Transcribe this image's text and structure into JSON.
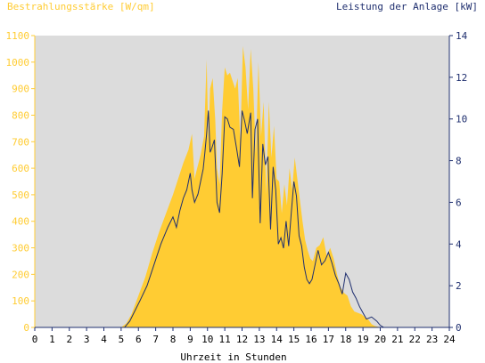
{
  "chart_data": {
    "type": "area",
    "left_axis_title": "Bestrahlungsstärke [W/qm]",
    "right_axis_title": "Leistung der Anlage [kW]",
    "xlabel": "Uhrzeit in Stunden",
    "x_ticks": [
      "0",
      "1",
      "2",
      "3",
      "4",
      "5",
      "6",
      "7",
      "8",
      "9",
      "10",
      "11",
      "12",
      "13",
      "14",
      "15",
      "16",
      "17",
      "18",
      "19",
      "20",
      "21",
      "22",
      "23",
      "24"
    ],
    "y_left_ticks": [
      "0",
      "100",
      "200",
      "300",
      "400",
      "500",
      "600",
      "700",
      "800",
      "900",
      "1000",
      "1100"
    ],
    "y_right_ticks": [
      "0",
      "2",
      "4",
      "6",
      "8",
      "10",
      "12",
      "14"
    ],
    "xlim": [
      0,
      24
    ],
    "ylim_left": [
      0,
      1100
    ],
    "ylim_right": [
      0,
      14
    ],
    "colors": {
      "irradiance": "#ffcc33",
      "power": "#1f2f6f",
      "plot_bg": "#dcdcdc",
      "left_axis": "#ffcc33",
      "right_axis": "#1f2f6f"
    },
    "series": [
      {
        "axis": "left",
        "x": [
          0,
          5.0,
          5.3,
          5.6,
          6.0,
          6.4,
          6.8,
          7.2,
          7.6,
          8.0,
          8.3,
          8.6,
          8.9,
          9.1,
          9.25,
          9.4,
          9.6,
          9.8,
          9.95,
          10.05,
          10.15,
          10.3,
          10.45,
          10.55,
          10.7,
          10.85,
          11.0,
          11.15,
          11.3,
          11.45,
          11.6,
          11.75,
          11.9,
          12.05,
          12.2,
          12.35,
          12.5,
          12.65,
          12.8,
          12.95,
          13.1,
          13.25,
          13.4,
          13.55,
          13.7,
          13.85,
          14.0,
          14.15,
          14.3,
          14.45,
          14.6,
          14.75,
          14.9,
          15.05,
          15.2,
          15.35,
          15.5,
          15.65,
          15.8,
          15.95,
          16.1,
          16.3,
          16.5,
          16.7,
          16.9,
          17.1,
          17.3,
          17.5,
          17.7,
          17.9,
          18.1,
          18.3,
          18.5,
          18.7,
          18.9,
          19.1,
          19.3,
          19.5,
          19.7,
          19.9,
          20.0,
          20.1,
          24
        ],
        "y": [
          0,
          0,
          15,
          50,
          120,
          190,
          280,
          360,
          430,
          500,
          560,
          620,
          670,
          730,
          560,
          600,
          650,
          720,
          1010,
          700,
          900,
          940,
          780,
          600,
          540,
          820,
          980,
          950,
          960,
          930,
          900,
          940,
          700,
          1060,
          980,
          820,
          1050,
          900,
          650,
          1000,
          720,
          850,
          500,
          850,
          640,
          760,
          560,
          550,
          430,
          540,
          460,
          600,
          520,
          640,
          560,
          480,
          400,
          330,
          290,
          260,
          250,
          300,
          310,
          340,
          270,
          300,
          260,
          200,
          150,
          130,
          120,
          80,
          60,
          55,
          50,
          40,
          30,
          12,
          5,
          2,
          0,
          0,
          0
        ]
      },
      {
        "axis": "right",
        "x": [
          0,
          5.2,
          5.5,
          5.8,
          6.1,
          6.5,
          6.9,
          7.3,
          7.7,
          8.0,
          8.2,
          8.4,
          8.6,
          8.8,
          9.0,
          9.1,
          9.25,
          9.45,
          9.6,
          9.75,
          9.85,
          9.95,
          10.05,
          10.15,
          10.25,
          10.4,
          10.55,
          10.7,
          10.85,
          11.0,
          11.15,
          11.3,
          11.5,
          11.7,
          11.85,
          12.0,
          12.15,
          12.3,
          12.5,
          12.6,
          12.75,
          12.9,
          13.05,
          13.2,
          13.35,
          13.5,
          13.65,
          13.8,
          13.95,
          14.1,
          14.25,
          14.4,
          14.55,
          14.7,
          14.85,
          15.0,
          15.15,
          15.3,
          15.45,
          15.6,
          15.75,
          15.9,
          16.05,
          16.2,
          16.4,
          16.6,
          16.8,
          17.0,
          17.2,
          17.4,
          17.6,
          17.8,
          18.0,
          18.2,
          18.4,
          18.6,
          18.8,
          19.0,
          19.2,
          19.5,
          19.8,
          20.0,
          20.2,
          24
        ],
        "y": [
          0,
          0,
          0.3,
          0.8,
          1.3,
          2.0,
          3.0,
          4.0,
          4.8,
          5.3,
          4.8,
          5.6,
          6.2,
          6.6,
          7.4,
          6.6,
          6.0,
          6.4,
          7.0,
          7.6,
          8.4,
          9.3,
          10.4,
          8.4,
          8.6,
          9.0,
          6.0,
          5.5,
          7.4,
          10.1,
          10.0,
          9.6,
          9.5,
          8.5,
          7.7,
          10.4,
          9.9,
          9.3,
          10.3,
          6.2,
          9.5,
          10.0,
          5.0,
          8.8,
          7.8,
          8.2,
          4.7,
          7.7,
          6.6,
          4.0,
          4.3,
          3.8,
          5.1,
          3.9,
          5.5,
          7.0,
          6.3,
          4.4,
          3.9,
          2.9,
          2.3,
          2.1,
          2.3,
          2.9,
          3.7,
          3.0,
          3.2,
          3.6,
          3.1,
          2.5,
          2.1,
          1.6,
          2.6,
          2.3,
          1.7,
          1.4,
          1.0,
          0.7,
          0.4,
          0.5,
          0.3,
          0.1,
          0,
          0
        ]
      }
    ]
  }
}
